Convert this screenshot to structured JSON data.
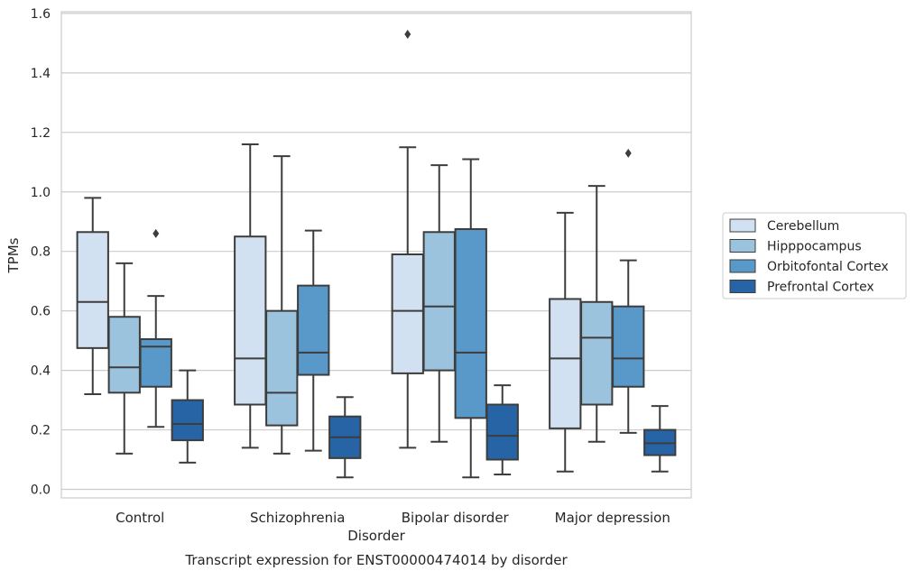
{
  "chart_data": {
    "type": "box",
    "title": "",
    "caption": "Transcript expression for ENST00000474014 by disorder",
    "xlabel": "Disorder",
    "ylabel": "TPMs",
    "ylim": [
      -0.03,
      1.61
    ],
    "yticks": [
      0.0,
      0.2,
      0.4,
      0.6,
      0.8,
      1.0,
      1.2,
      1.4,
      1.6
    ],
    "ytick_labels": [
      "0.0",
      "0.2",
      "0.4",
      "0.6",
      "0.8",
      "1.0",
      "1.2",
      "1.4",
      "1.6"
    ],
    "grid": true,
    "legend_position": "right",
    "categories": [
      "Control",
      "Schizophrenia",
      "Bipolar disorder",
      "Major depression"
    ],
    "series": [
      {
        "name": "Cerebellum",
        "color": "#d1e1f1",
        "boxes": [
          {
            "whislo": 0.32,
            "q1": 0.475,
            "med": 0.63,
            "q3": 0.865,
            "whishi": 0.98,
            "fliers": []
          },
          {
            "whislo": 0.14,
            "q1": 0.285,
            "med": 0.44,
            "q3": 0.85,
            "whishi": 1.16,
            "fliers": []
          },
          {
            "whislo": 0.14,
            "q1": 0.39,
            "med": 0.6,
            "q3": 0.79,
            "whishi": 1.15,
            "fliers": [
              1.53
            ]
          },
          {
            "whislo": 0.06,
            "q1": 0.205,
            "med": 0.44,
            "q3": 0.64,
            "whishi": 0.93,
            "fliers": []
          }
        ]
      },
      {
        "name": "Hipppocampus",
        "color": "#9bc3dd",
        "boxes": [
          {
            "whislo": 0.12,
            "q1": 0.325,
            "med": 0.41,
            "q3": 0.58,
            "whishi": 0.76,
            "fliers": []
          },
          {
            "whislo": 0.12,
            "q1": 0.215,
            "med": 0.325,
            "q3": 0.6,
            "whishi": 1.12,
            "fliers": []
          },
          {
            "whislo": 0.16,
            "q1": 0.4,
            "med": 0.615,
            "q3": 0.865,
            "whishi": 1.09,
            "fliers": []
          },
          {
            "whislo": 0.16,
            "q1": 0.285,
            "med": 0.51,
            "q3": 0.63,
            "whishi": 1.02,
            "fliers": []
          }
        ]
      },
      {
        "name": "Orbitofontal Cortex",
        "color": "#5999c9",
        "boxes": [
          {
            "whislo": 0.21,
            "q1": 0.345,
            "med": 0.48,
            "q3": 0.505,
            "whishi": 0.65,
            "fliers": [
              0.86
            ]
          },
          {
            "whislo": 0.13,
            "q1": 0.385,
            "med": 0.46,
            "q3": 0.685,
            "whishi": 0.87,
            "fliers": []
          },
          {
            "whislo": 0.04,
            "q1": 0.24,
            "med": 0.46,
            "q3": 0.875,
            "whishi": 1.11,
            "fliers": []
          },
          {
            "whislo": 0.19,
            "q1": 0.345,
            "med": 0.44,
            "q3": 0.615,
            "whishi": 0.77,
            "fliers": [
              1.13
            ]
          }
        ]
      },
      {
        "name": "Prefrontal Cortex",
        "color": "#2664a6",
        "boxes": [
          {
            "whislo": 0.09,
            "q1": 0.165,
            "med": 0.22,
            "q3": 0.3,
            "whishi": 0.4,
            "fliers": []
          },
          {
            "whislo": 0.04,
            "q1": 0.105,
            "med": 0.175,
            "q3": 0.245,
            "whishi": 0.31,
            "fliers": []
          },
          {
            "whislo": 0.05,
            "q1": 0.1,
            "med": 0.18,
            "q3": 0.285,
            "whishi": 0.35,
            "fliers": []
          },
          {
            "whislo": 0.06,
            "q1": 0.115,
            "med": 0.155,
            "q3": 0.2,
            "whishi": 0.28,
            "fliers": []
          }
        ]
      }
    ]
  }
}
